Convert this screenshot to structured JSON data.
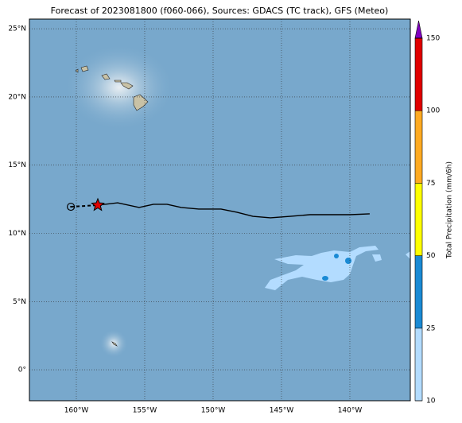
{
  "map": {
    "type": "map",
    "title": "Forecast of 2023081800 (f060-066), Sources: GDACS (TC track), GFS (Meteo)",
    "xlim": [
      -163.43,
      -135.58
    ],
    "ylim": [
      -2.27,
      25.71
    ],
    "xticks": [
      {
        "value": -160,
        "label": "160°W"
      },
      {
        "value": -155,
        "label": "155°W"
      },
      {
        "value": -150,
        "label": "150°W"
      },
      {
        "value": -145,
        "label": "145°W"
      },
      {
        "value": -140,
        "label": "140°W"
      }
    ],
    "yticks": [
      {
        "value": 0,
        "label": "0°"
      },
      {
        "value": 5,
        "label": "5°N"
      },
      {
        "value": 10,
        "label": "10°N"
      },
      {
        "value": 15,
        "label": "15°N"
      },
      {
        "value": 20,
        "label": "20°N"
      },
      {
        "value": 25,
        "label": "25°N"
      }
    ],
    "grid": true,
    "colorbar": {
      "label": "Total Precipitation (mm/6h)",
      "ticks": [
        10,
        25,
        50,
        75,
        100,
        150
      ],
      "colors": [
        "#b3dcff",
        "#1a8ad4",
        "#ffff00",
        "#ffaa22",
        "#e00000"
      ],
      "extend_color": "#8000c0"
    },
    "track": {
      "lon": [
        -158.43,
        -156.98,
        -155.41,
        -154.36,
        -153.37,
        -152.33,
        -151.05,
        -149.42,
        -148.26,
        -147.09,
        -145.81,
        -144.36,
        -142.91,
        -141.45,
        -140.0,
        -138.55
      ],
      "lat": [
        12.07,
        12.24,
        11.9,
        12.13,
        12.13,
        11.9,
        11.78,
        11.78,
        11.55,
        11.25,
        11.14,
        11.25,
        11.37,
        11.37,
        11.37,
        11.43
      ]
    },
    "origin": {
      "lon": -160.4,
      "lat": 11.95
    }
  }
}
